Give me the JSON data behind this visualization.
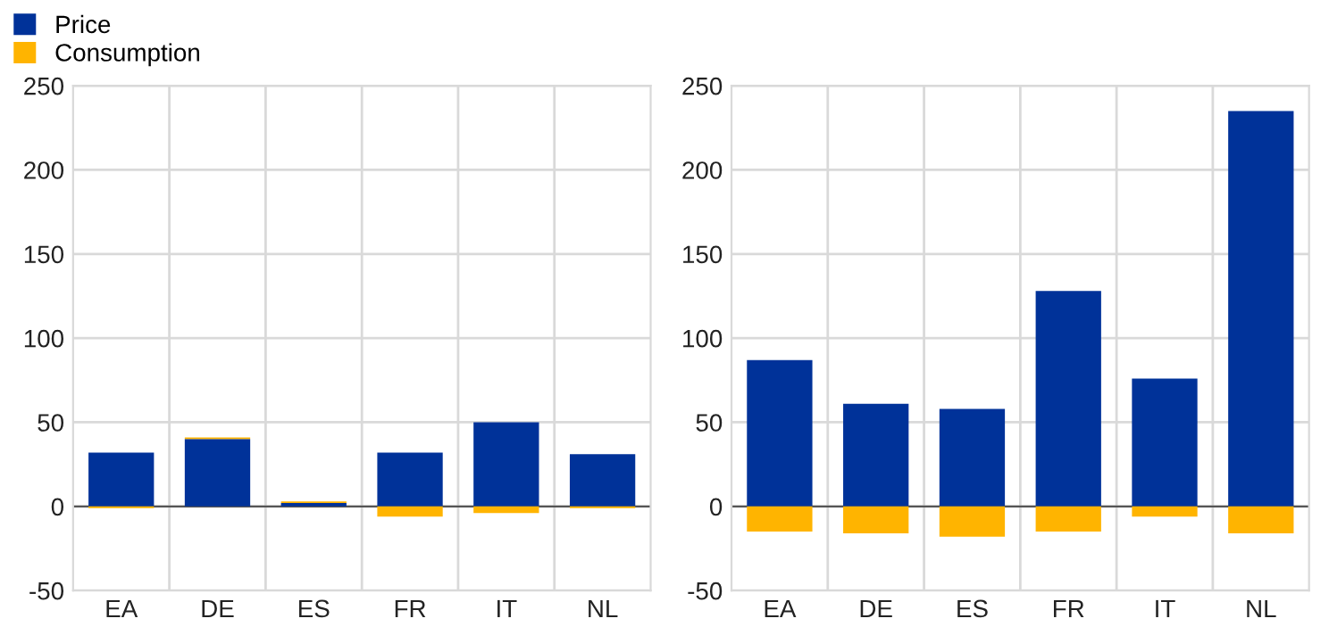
{
  "chart_data": [
    {
      "type": "bar",
      "stacked": true,
      "categories": [
        "EA",
        "DE",
        "ES",
        "FR",
        "IT",
        "NL"
      ],
      "series": [
        {
          "name": "Price",
          "color": "#003299",
          "values": [
            32,
            40,
            2,
            32,
            50,
            31
          ]
        },
        {
          "name": "Consumption",
          "color": "#ffb400",
          "values": [
            -1,
            1,
            1,
            -6,
            -4,
            -1
          ]
        }
      ],
      "ylim": [
        -50,
        250
      ],
      "yticks": [
        -50,
        0,
        50,
        100,
        150,
        200,
        250
      ],
      "grid": true,
      "legend": "top left"
    },
    {
      "type": "bar",
      "stacked": true,
      "categories": [
        "EA",
        "DE",
        "ES",
        "FR",
        "IT",
        "NL"
      ],
      "series": [
        {
          "color": "#003299",
          "values": [
            87,
            61,
            58,
            128,
            76,
            235
          ]
        },
        {
          "color": "#ffb400",
          "values": [
            -15,
            -16,
            -18,
            -15,
            -6,
            -16
          ]
        }
      ],
      "ylim": [
        -50,
        250
      ],
      "yticks": [
        -50,
        0,
        50,
        100,
        150,
        200,
        250
      ],
      "grid": true
    }
  ]
}
